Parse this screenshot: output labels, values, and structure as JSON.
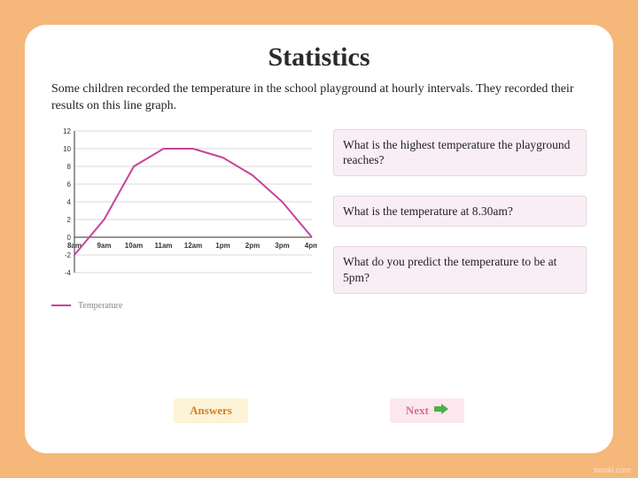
{
  "title": "Statistics",
  "intro": "Some children recorded the temperature in the school playground at hourly intervals. They recorded their results on this line graph.",
  "chart": {
    "type": "line",
    "x_labels": [
      "8am",
      "9am",
      "10am",
      "11am",
      "12am",
      "1pm",
      "2pm",
      "3pm",
      "4pm"
    ],
    "y_values": [
      -2,
      2,
      8,
      10,
      10,
      9,
      7,
      4,
      0
    ],
    "ylim": [
      -4,
      12
    ],
    "ytick_step": 2,
    "line_color": "#c9419d",
    "line_width": 2,
    "grid_color": "#d9d9d9",
    "axis_color": "#555555",
    "tick_font_size": 8,
    "tick_color": "#333333",
    "background": "#ffffff",
    "legend_label": "Temperature"
  },
  "questions": [
    "What is the highest temperature the playground reaches?",
    "What is the temperature at 8.30am?",
    "What do you predict the temperature to be at 5pm?"
  ],
  "buttons": {
    "answers": "Answers",
    "next": "Next"
  },
  "colors": {
    "frame_bg": "#f5b77a",
    "card_bg": "#ffffff",
    "qbox_bg": "#faeef5",
    "answers_bg": "#fdf3d6",
    "answers_fg": "#d87c1e",
    "next_bg": "#fce7ee",
    "next_fg": "#d96a9e",
    "arrow_fill": "#4fae4a"
  },
  "watermark": "twinkl.com"
}
